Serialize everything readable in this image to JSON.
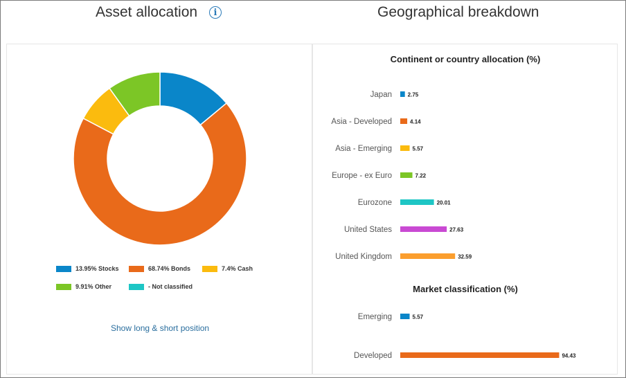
{
  "left_panel": {
    "title": "Asset allocation",
    "info_icon": "info-icon",
    "link_label": "Show long & short position"
  },
  "right_panel": {
    "title": "Geographical breakdown"
  },
  "chart_data": [
    {
      "type": "pie",
      "donut": true,
      "title": "",
      "slices": [
        {
          "label": "13.95% Stocks",
          "name": "Stocks",
          "value": 13.95,
          "color": "#0a86c9"
        },
        {
          "label": "68.74% Bonds",
          "name": "Bonds",
          "value": 68.74,
          "color": "#e96a1a"
        },
        {
          "label": "7.4% Cash",
          "name": "Cash",
          "value": 7.4,
          "color": "#fbbb0e"
        },
        {
          "label": "9.91% Other",
          "name": "Other",
          "value": 9.91,
          "color": "#7cc626"
        },
        {
          "label": "- Not classified",
          "name": "Not classified",
          "value": 0,
          "color": "#1ec6c5"
        }
      ],
      "legend_placement": "bottom"
    },
    {
      "type": "bar",
      "orientation": "horizontal",
      "title": "Continent or country allocation (%)",
      "categories": [
        "Japan",
        "Asia - Developed",
        "Asia - Emerging",
        "Europe - ex Euro",
        "Eurozone",
        "United States",
        "United Kingdom"
      ],
      "values": [
        2.75,
        4.14,
        5.57,
        7.22,
        20.01,
        27.63,
        32.59
      ],
      "value_labels": [
        "2.75",
        "4.14",
        "5.57",
        "7.22",
        "20.01",
        "27.63",
        "32.59"
      ],
      "colors": [
        "#0a86c9",
        "#e96a1a",
        "#fbbb0e",
        "#7cc626",
        "#1ec6c5",
        "#c94ad3",
        "#fb9e2e"
      ],
      "xlim": [
        0,
        100
      ]
    },
    {
      "type": "bar",
      "orientation": "horizontal",
      "title": "Market classification (%)",
      "categories": [
        "Emerging",
        "Developed"
      ],
      "values": [
        5.57,
        94.43
      ],
      "value_labels": [
        "5.57",
        "94.43"
      ],
      "colors": [
        "#0a86c9",
        "#e96a1a"
      ],
      "xlim": [
        0,
        100
      ]
    }
  ]
}
